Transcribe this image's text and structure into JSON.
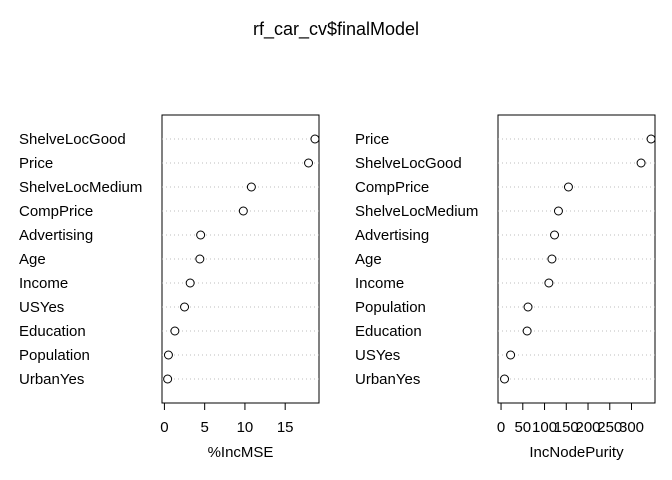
{
  "chart_data": {
    "title": "rf_car_cv$finalModel",
    "type": "dotchart",
    "panels": [
      {
        "xlabel": "%IncMSE",
        "xlim": [
          -0.3,
          19.2
        ],
        "ticks": [
          0,
          5,
          10,
          15
        ],
        "points": [
          {
            "label": "ShelveLocGood",
            "value": 18.7
          },
          {
            "label": "Price",
            "value": 17.9
          },
          {
            "label": "ShelveLocMedium",
            "value": 10.8
          },
          {
            "label": "CompPrice",
            "value": 9.8
          },
          {
            "label": "Advertising",
            "value": 4.5
          },
          {
            "label": "Age",
            "value": 4.4
          },
          {
            "label": "Income",
            "value": 3.2
          },
          {
            "label": "USYes",
            "value": 2.5
          },
          {
            "label": "Education",
            "value": 1.3
          },
          {
            "label": "Population",
            "value": 0.5
          },
          {
            "label": "UrbanYes",
            "value": 0.4
          }
        ]
      },
      {
        "xlabel": "IncNodePurity",
        "xlim": [
          -7,
          354
        ],
        "ticks": [
          0,
          50,
          100,
          150,
          200,
          250,
          300
        ],
        "points": [
          {
            "label": "Price",
            "value": 345
          },
          {
            "label": "ShelveLocGood",
            "value": 322
          },
          {
            "label": "CompPrice",
            "value": 155
          },
          {
            "label": "ShelveLocMedium",
            "value": 132
          },
          {
            "label": "Advertising",
            "value": 123
          },
          {
            "label": "Age",
            "value": 117
          },
          {
            "label": "Income",
            "value": 110
          },
          {
            "label": "Population",
            "value": 62
          },
          {
            "label": "Education",
            "value": 60
          },
          {
            "label": "USYes",
            "value": 22
          },
          {
            "label": "UrbanYes",
            "value": 8
          }
        ]
      }
    ]
  }
}
